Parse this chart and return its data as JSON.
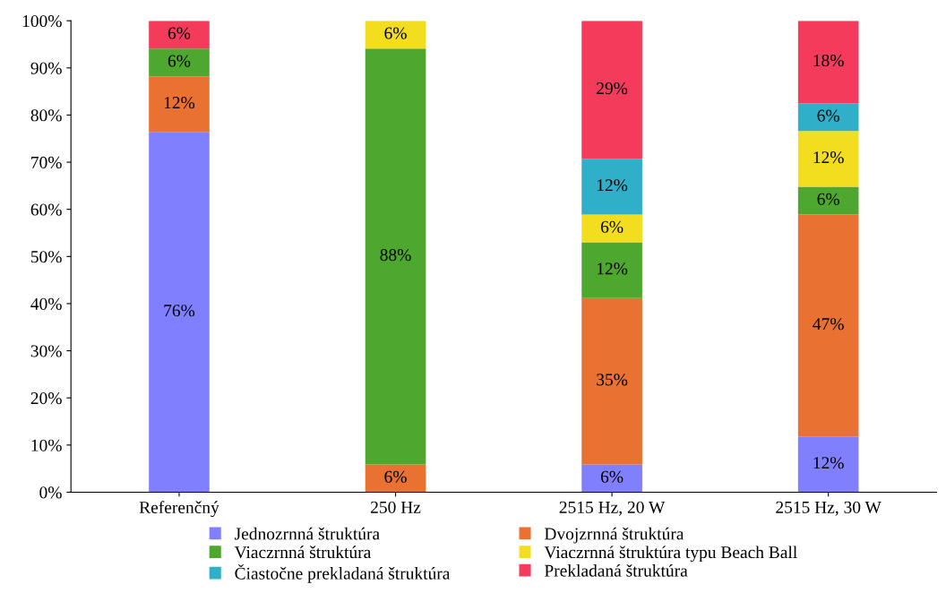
{
  "chart_data": {
    "type": "bar",
    "stacked": true,
    "categories": [
      "Referenčný",
      "250 Hz",
      "2515 Hz, 20 W",
      "2515 Hz, 30 W"
    ],
    "series": [
      {
        "name": "Jednozrnná štruktúra",
        "color": "#8080ff",
        "values": [
          76.4,
          null,
          5.9,
          11.8
        ],
        "value_labels": [
          "76%",
          null,
          "6%",
          "12%"
        ]
      },
      {
        "name": "Dvojzrnná štruktúra",
        "color": "#e97132",
        "values": [
          11.8,
          5.9,
          35.3,
          47.1
        ],
        "value_labels": [
          "12%",
          "6%",
          "35%",
          "47%"
        ]
      },
      {
        "name": "Viaczrnná štruktúra",
        "color": "#4ea72e",
        "values": [
          5.9,
          88.2,
          11.8,
          5.9
        ],
        "value_labels": [
          "6%",
          "88%",
          "12%",
          "6%"
        ]
      },
      {
        "name": "Viaczrnná štruktúra typu Beach Ball",
        "color": "#f2de1e",
        "values": [
          null,
          5.9,
          5.9,
          11.8
        ],
        "value_labels": [
          null,
          "6%",
          "6%",
          "12%"
        ]
      },
      {
        "name": "Čiastočne prekladaná štruktúra",
        "color": "#2fafc8",
        "values": [
          null,
          null,
          11.8,
          5.9
        ],
        "value_labels": [
          null,
          null,
          "12%",
          "6%"
        ]
      },
      {
        "name": "Prekladaná štruktúra",
        "color": "#f53b5c",
        "values": [
          5.9,
          null,
          29.3,
          17.5
        ],
        "value_labels": [
          "6%",
          null,
          "29%",
          "18%"
        ]
      }
    ],
    "ylim": [
      0,
      100
    ],
    "yticks": [
      {
        "value": 0,
        "label": "0%"
      },
      {
        "value": 10,
        "label": "10%"
      },
      {
        "value": 20,
        "label": "20%"
      },
      {
        "value": 30,
        "label": "30%"
      },
      {
        "value": 40,
        "label": "40%"
      },
      {
        "value": 50,
        "label": "50%"
      },
      {
        "value": 60,
        "label": "60%"
      },
      {
        "value": 70,
        "label": "70%"
      },
      {
        "value": 80,
        "label": "80%"
      },
      {
        "value": 90,
        "label": "90%"
      },
      {
        "value": 100,
        "label": "100%"
      }
    ],
    "grid": false,
    "legend": "bottom"
  }
}
